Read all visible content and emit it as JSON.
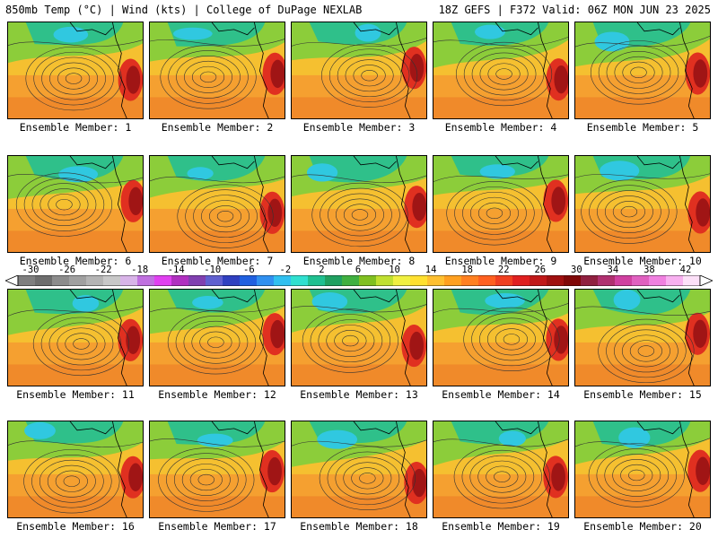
{
  "header": {
    "left": "850mb Temp (°C) | Wind (kts) | College of DuPage NEXLAB",
    "right": "18Z GEFS | F372 Valid: 06Z MON JUN 23 2025"
  },
  "panels": [
    {
      "label": "Ensemble Member: 1"
    },
    {
      "label": "Ensemble Member: 2"
    },
    {
      "label": "Ensemble Member: 3"
    },
    {
      "label": "Ensemble Member: 4"
    },
    {
      "label": "Ensemble Member: 5"
    },
    {
      "label": "Ensemble Member: 6"
    },
    {
      "label": "Ensemble Member: 7"
    },
    {
      "label": "Ensemble Member: 8"
    },
    {
      "label": "Ensemble Member: 9"
    },
    {
      "label": "Ensemble Member: 10"
    },
    {
      "label": "Ensemble Member: 11"
    },
    {
      "label": "Ensemble Member: 12"
    },
    {
      "label": "Ensemble Member: 13"
    },
    {
      "label": "Ensemble Member: 14"
    },
    {
      "label": "Ensemble Member: 15"
    },
    {
      "label": "Ensemble Member: 16"
    },
    {
      "label": "Ensemble Member: 17"
    },
    {
      "label": "Ensemble Member: 18"
    },
    {
      "label": "Ensemble Member: 19"
    },
    {
      "label": "Ensemble Member: 20"
    }
  ],
  "colorbar": {
    "ticks": [
      "-30",
      "-26",
      "-22",
      "-18",
      "-14",
      "-10",
      "-6",
      "-2",
      "2",
      "6",
      "10",
      "14",
      "18",
      "22",
      "26",
      "30",
      "34",
      "38",
      "42"
    ],
    "colors": [
      "#7f7f7f",
      "#6d6d6d",
      "#8c8c8c",
      "#a0a0a0",
      "#b4b4b4",
      "#c8c8c8",
      "#d8b4e8",
      "#c070e0",
      "#e040f0",
      "#b030c0",
      "#8040b0",
      "#6060d0",
      "#3040c0",
      "#2060e0",
      "#3090f0",
      "#30c0f0",
      "#30e0d0",
      "#20c090",
      "#20a060",
      "#40b040",
      "#80c020",
      "#c0e030",
      "#f0f040",
      "#ffe030",
      "#ffc030",
      "#ffa020",
      "#ff8020",
      "#ff6020",
      "#f04020",
      "#e02020",
      "#c01818",
      "#a01010",
      "#800808",
      "#902040",
      "#b03070",
      "#d040a0",
      "#e060c0",
      "#f080e0",
      "#f8b0f0",
      "#fce0f8"
    ]
  }
}
